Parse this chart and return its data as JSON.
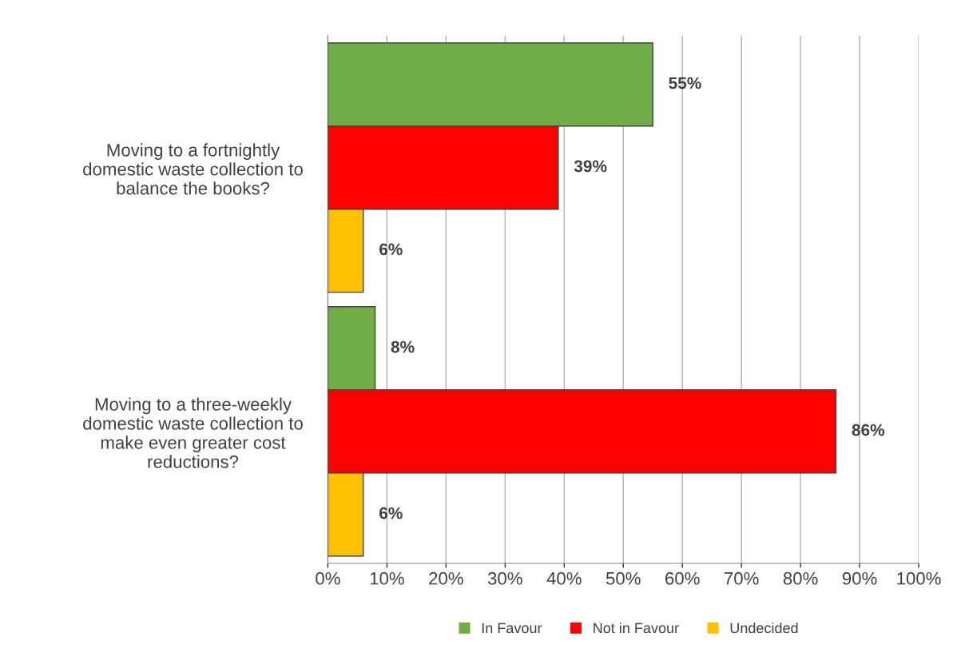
{
  "chart_data": {
    "type": "bar",
    "orientation": "horizontal",
    "categories": [
      "Moving to a fortnightly\ndomestic waste collection to\nbalance the books?",
      "Moving to a three-weekly\ndomestic waste collection to\nmake even greater cost\nreductions?"
    ],
    "series": [
      {
        "name": "In Favour",
        "color": "#70ad47",
        "values": [
          55,
          8
        ],
        "value_labels": [
          "55%",
          "8%"
        ]
      },
      {
        "name": "Not in Favour",
        "color": "#ff0000",
        "values": [
          39,
          86
        ],
        "value_labels": [
          "39%",
          "86%"
        ]
      },
      {
        "name": "Undecided",
        "color": "#ffc000",
        "values": [
          6,
          6
        ],
        "value_labels": [
          "6%",
          "6%"
        ]
      }
    ],
    "xlim": [
      0,
      100
    ],
    "xticks": [
      {
        "value": 0,
        "label": "0%"
      },
      {
        "value": 10,
        "label": "10%"
      },
      {
        "value": 20,
        "label": "20%"
      },
      {
        "value": 30,
        "label": "30%"
      },
      {
        "value": 40,
        "label": "40%"
      },
      {
        "value": 50,
        "label": "50%"
      },
      {
        "value": 60,
        "label": "60%"
      },
      {
        "value": 70,
        "label": "70%"
      },
      {
        "value": 80,
        "label": "80%"
      },
      {
        "value": 90,
        "label": "90%"
      },
      {
        "value": 100,
        "label": "100%"
      }
    ],
    "grid": "x",
    "legend": "bottom"
  }
}
